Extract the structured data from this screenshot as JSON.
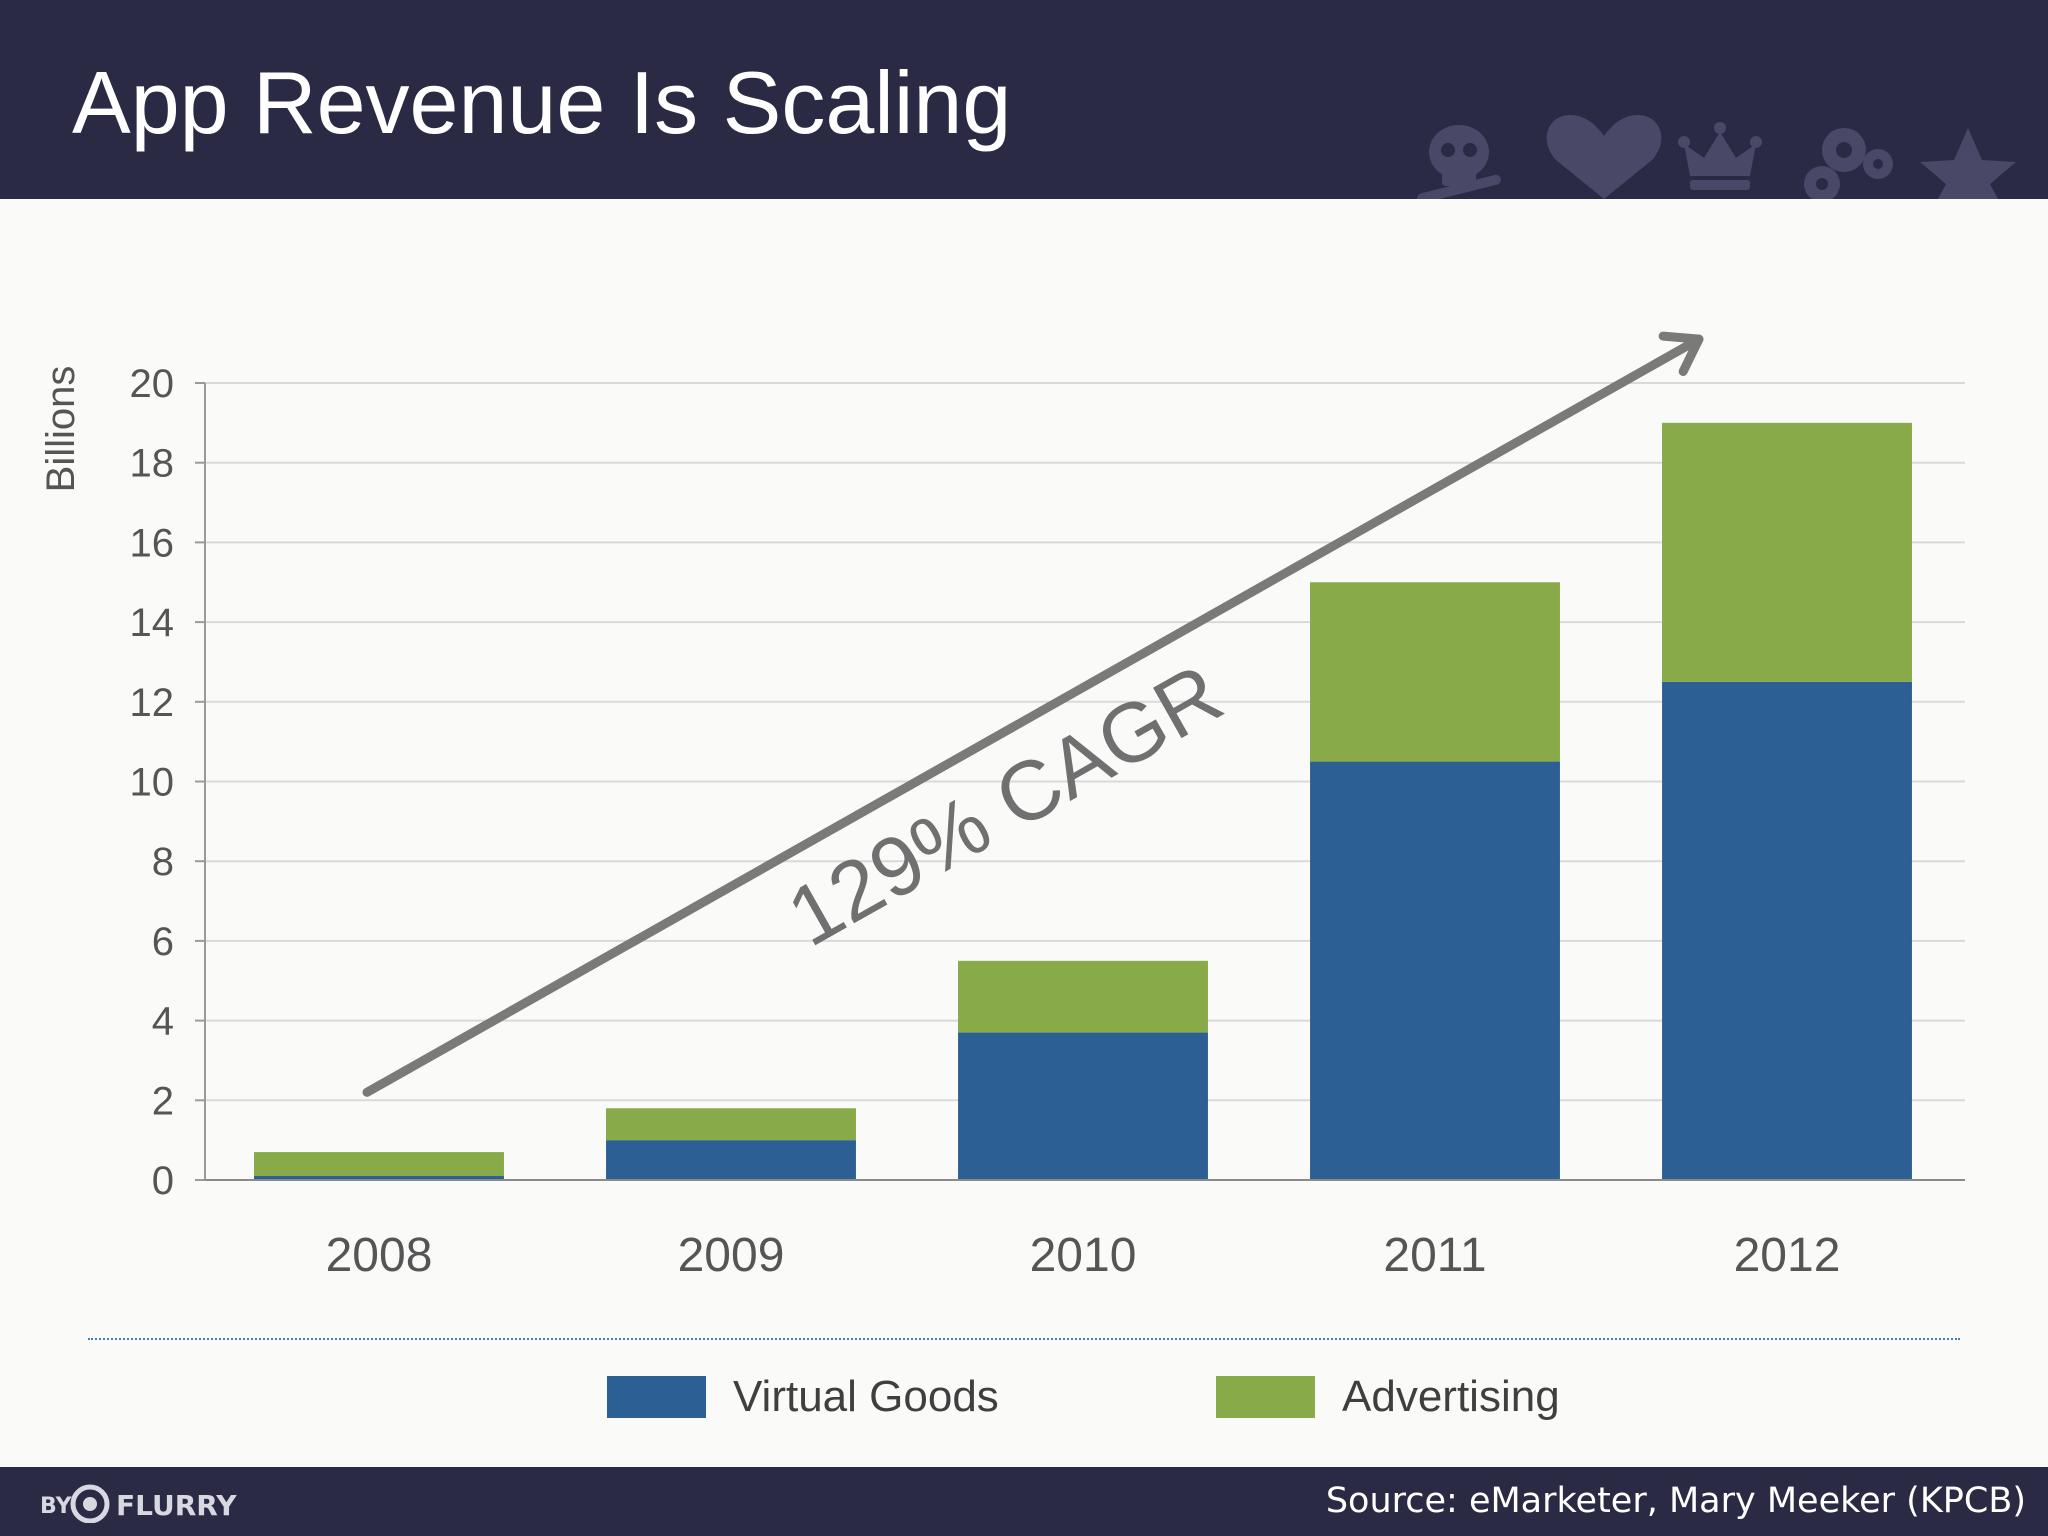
{
  "slide": {
    "title": "App Revenue Is Scaling",
    "source": "Source: eMarketer, Mary Meeker (KPCB)",
    "brand": {
      "by": "BY",
      "name": "FLURRY"
    },
    "header_icons": [
      "skull-icon",
      "heart-icon",
      "crown-icon",
      "gears-icon",
      "star-icon"
    ]
  },
  "chart_data": {
    "type": "bar",
    "stacked": true,
    "categories": [
      "2008",
      "2009",
      "2010",
      "2011",
      "2012"
    ],
    "series": [
      {
        "name": "Virtual Goods",
        "color": "#2c6094",
        "values": [
          0.1,
          1.0,
          3.7,
          10.5,
          12.5
        ]
      },
      {
        "name": "Advertising",
        "color": "#88aa48",
        "values": [
          0.6,
          0.8,
          1.8,
          4.5,
          6.5
        ]
      }
    ],
    "ylabel": "Billions",
    "ylim": [
      0,
      20
    ],
    "yticks": [
      0,
      2,
      4,
      6,
      8,
      10,
      12,
      14,
      16,
      18,
      20
    ],
    "grid": true,
    "annotation": {
      "text": "129% CAGR",
      "from": [
        "2008",
        2.2
      ],
      "to": [
        "2012",
        21.1
      ]
    },
    "legend_position": "bottom"
  }
}
